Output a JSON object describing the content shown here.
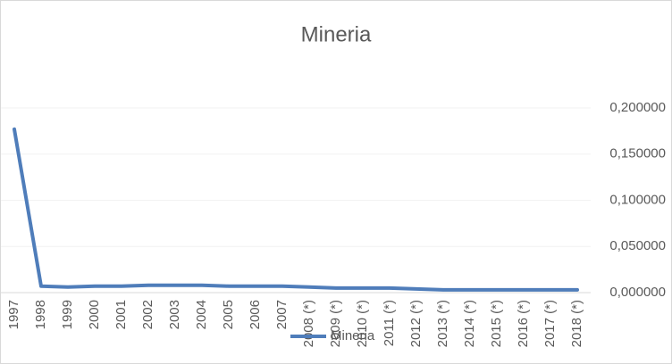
{
  "chart_data": {
    "type": "line",
    "title": "Mineria",
    "categories": [
      "1997",
      "1998",
      "1999",
      "2000",
      "2001",
      "2002",
      "2003",
      "2004",
      "2005",
      "2006",
      "2007",
      "2008 (*)",
      "2009 (*)",
      "2010 (*)",
      "2011 (*)",
      "2012 (*)",
      "2013 (*)",
      "2014 (*)",
      "2015 (*)",
      "2016 (*)",
      "2017 (*)",
      "2018 (*)"
    ],
    "series": [
      {
        "name": "Mineria",
        "color": "#4f7dba",
        "values": [
          0.177,
          0.007,
          0.006,
          0.007,
          0.007,
          0.008,
          0.008,
          0.008,
          0.007,
          0.007,
          0.007,
          0.006,
          0.005,
          0.005,
          0.005,
          0.004,
          0.003,
          0.003,
          0.003,
          0.003,
          0.003,
          0.003
        ]
      }
    ],
    "ylim": [
      0,
      0.2
    ],
    "yticks": [
      {
        "value": 0,
        "label": "0,000000"
      },
      {
        "value": 0.05,
        "label": "0,050000"
      },
      {
        "value": 0.1,
        "label": "0,100000"
      },
      {
        "value": 0.15,
        "label": "0,150000"
      },
      {
        "value": 0.2,
        "label": "0,200000"
      }
    ],
    "y_axis_side": "right",
    "grid": true,
    "legend": "bottom"
  }
}
